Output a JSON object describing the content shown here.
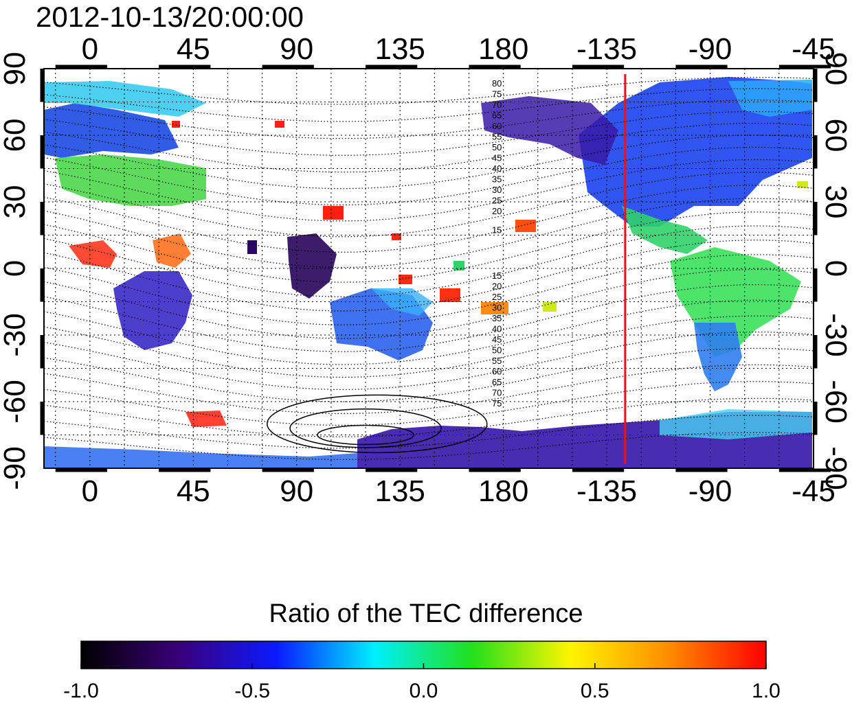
{
  "header": {
    "timestamp": "2012-10-13/20:00:00"
  },
  "map": {
    "longitude_ticks": [
      "0",
      "45",
      "90",
      "135",
      "180",
      "-135",
      "-90",
      "-45"
    ],
    "longitude_tick_values": [
      0,
      45,
      90,
      135,
      180,
      225,
      270,
      315
    ],
    "latitude_ticks": [
      "90",
      "60",
      "30",
      "0",
      "-30",
      "-60",
      "-90"
    ],
    "latitude_tick_values": [
      90,
      60,
      30,
      0,
      -30,
      -60,
      -90
    ],
    "lon_range": [
      -20,
      315
    ],
    "lat_range": [
      -90,
      90
    ],
    "grid": "dotted",
    "marker_line": {
      "longitude": -135,
      "color": "#e8141a"
    },
    "contour_labels_north": [
      "80",
      "75",
      "70",
      "65",
      "60",
      "55",
      "50",
      "45",
      "40",
      "35",
      "30",
      "25",
      "20",
      "15"
    ],
    "contour_labels_south": [
      "15",
      "20",
      "25",
      "30",
      "35",
      "40",
      "45",
      "50",
      "55",
      "60",
      "65",
      "70",
      "75"
    ]
  },
  "colorbar": {
    "title": "Ratio of the TEC difference",
    "tick_labels": [
      "-1.0",
      "-0.5",
      "0.0",
      "0.5",
      "1.0"
    ],
    "range": [
      -1.0,
      1.0
    ],
    "colors": [
      "#000000",
      "#3a007a",
      "#0a1aff",
      "#00f0ff",
      "#22e01a",
      "#fff500",
      "#ff8c00",
      "#ff0000"
    ]
  }
}
